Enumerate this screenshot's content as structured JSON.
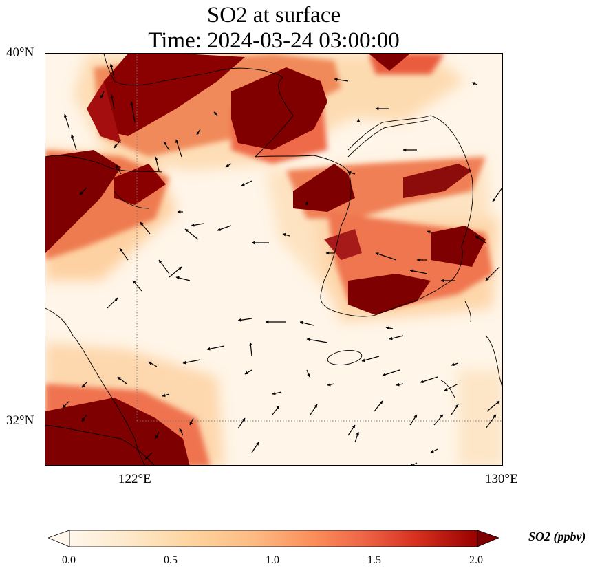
{
  "map": {
    "title_line1": "SO2 at surface",
    "title_line2": "Time: 2024-03-24 03:00:00",
    "lat_labels": [
      "40°N",
      "32°N"
    ],
    "lon_labels": [
      "122°E",
      "130°E"
    ],
    "gridline_style": "dotted grey",
    "colormap": "OrRd",
    "colors": {
      "low": "#fff7ec",
      "mid_low": "#fdd49e",
      "mid": "#fc8d59",
      "mid_high": "#d7301f",
      "high": "#7f0000"
    }
  },
  "colorbar": {
    "label": "SO2 (ppbv)",
    "ticks": [
      "0.0",
      "0.5",
      "1.0",
      "1.5",
      "2.0"
    ],
    "extend": "both"
  }
}
